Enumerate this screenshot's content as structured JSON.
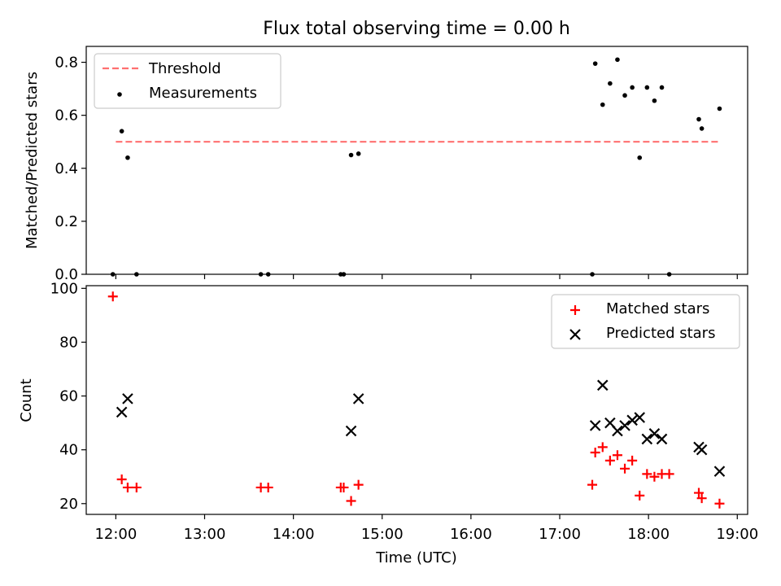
{
  "title": "Flux total observing time = 0.00 h",
  "colors": {
    "threshold": "#ff7070",
    "measurement": "#000000",
    "matched": "#ff0000",
    "predicted": "#000000"
  },
  "chart_data": [
    {
      "type": "scatter",
      "panel": "top",
      "ylabel": "Matched/Predicted stars",
      "ylim": [
        0,
        0.86
      ],
      "yticks": [
        0.0,
        0.2,
        0.4,
        0.6,
        0.8
      ],
      "ytick_labels": [
        "0.0",
        "0.2",
        "0.4",
        "0.6",
        "0.8"
      ],
      "legend_position": "upper-left",
      "threshold": {
        "name": "Threshold",
        "y": 0.5,
        "x_range": [
          "12:00",
          "18:48"
        ]
      },
      "series": [
        {
          "name": "Measurements",
          "marker": "dot",
          "points": [
            [
              "11:58",
              0.0
            ],
            [
              "12:04",
              0.54
            ],
            [
              "12:08",
              0.44
            ],
            [
              "12:14",
              0.0
            ],
            [
              "13:38",
              0.0
            ],
            [
              "13:43",
              0.0
            ],
            [
              "14:32",
              0.0
            ],
            [
              "14:34",
              0.0
            ],
            [
              "14:39",
              0.45
            ],
            [
              "14:44",
              0.455
            ],
            [
              "17:22",
              0.0
            ],
            [
              "17:24",
              0.795
            ],
            [
              "17:29",
              0.64
            ],
            [
              "17:34",
              0.72
            ],
            [
              "17:39",
              0.81
            ],
            [
              "17:44",
              0.675
            ],
            [
              "17:49",
              0.705
            ],
            [
              "17:54",
              0.44
            ],
            [
              "17:59",
              0.705
            ],
            [
              "18:04",
              0.655
            ],
            [
              "18:09",
              0.705
            ],
            [
              "18:14",
              0.0
            ],
            [
              "18:34",
              0.585
            ],
            [
              "18:36",
              0.55
            ],
            [
              "18:48",
              0.625
            ]
          ]
        }
      ]
    },
    {
      "type": "scatter",
      "panel": "bottom",
      "xlabel": "Time (UTC)",
      "ylabel": "Count",
      "ylim": [
        16,
        101
      ],
      "yticks": [
        20,
        40,
        60,
        80,
        100
      ],
      "ytick_labels": [
        "20",
        "40",
        "60",
        "80",
        "100"
      ],
      "xlim": [
        "11:40",
        "19:07"
      ],
      "xticks": [
        "12:00",
        "13:00",
        "14:00",
        "15:00",
        "16:00",
        "17:00",
        "18:00",
        "19:00"
      ],
      "xtick_labels": [
        "12:00",
        "13:00",
        "14:00",
        "15:00",
        "16:00",
        "17:00",
        "18:00",
        "19:00"
      ],
      "legend_position": "upper-right",
      "series": [
        {
          "name": "Matched stars",
          "marker": "plus",
          "points": [
            [
              "11:58",
              97
            ],
            [
              "12:04",
              29
            ],
            [
              "12:08",
              26
            ],
            [
              "12:14",
              26
            ],
            [
              "13:38",
              26
            ],
            [
              "13:43",
              26
            ],
            [
              "14:32",
              26
            ],
            [
              "14:34",
              26
            ],
            [
              "14:39",
              21
            ],
            [
              "14:44",
              27
            ],
            [
              "17:22",
              27
            ],
            [
              "17:24",
              39
            ],
            [
              "17:29",
              41
            ],
            [
              "17:34",
              36
            ],
            [
              "17:39",
              38
            ],
            [
              "17:44",
              33
            ],
            [
              "17:49",
              36
            ],
            [
              "17:54",
              23
            ],
            [
              "17:59",
              31
            ],
            [
              "18:04",
              30
            ],
            [
              "18:09",
              31
            ],
            [
              "18:14",
              31
            ],
            [
              "18:34",
              24
            ],
            [
              "18:36",
              22
            ],
            [
              "18:48",
              20
            ]
          ]
        },
        {
          "name": "Predicted stars",
          "marker": "x",
          "points": [
            [
              "12:04",
              54
            ],
            [
              "12:08",
              59
            ],
            [
              "14:39",
              47
            ],
            [
              "14:44",
              59
            ],
            [
              "17:24",
              49
            ],
            [
              "17:29",
              64
            ],
            [
              "17:34",
              50
            ],
            [
              "17:39",
              47
            ],
            [
              "17:44",
              49
            ],
            [
              "17:49",
              51
            ],
            [
              "17:54",
              52
            ],
            [
              "17:59",
              44
            ],
            [
              "18:04",
              46
            ],
            [
              "18:09",
              44
            ],
            [
              "18:34",
              41
            ],
            [
              "18:36",
              40
            ],
            [
              "18:48",
              32
            ]
          ]
        }
      ]
    }
  ]
}
